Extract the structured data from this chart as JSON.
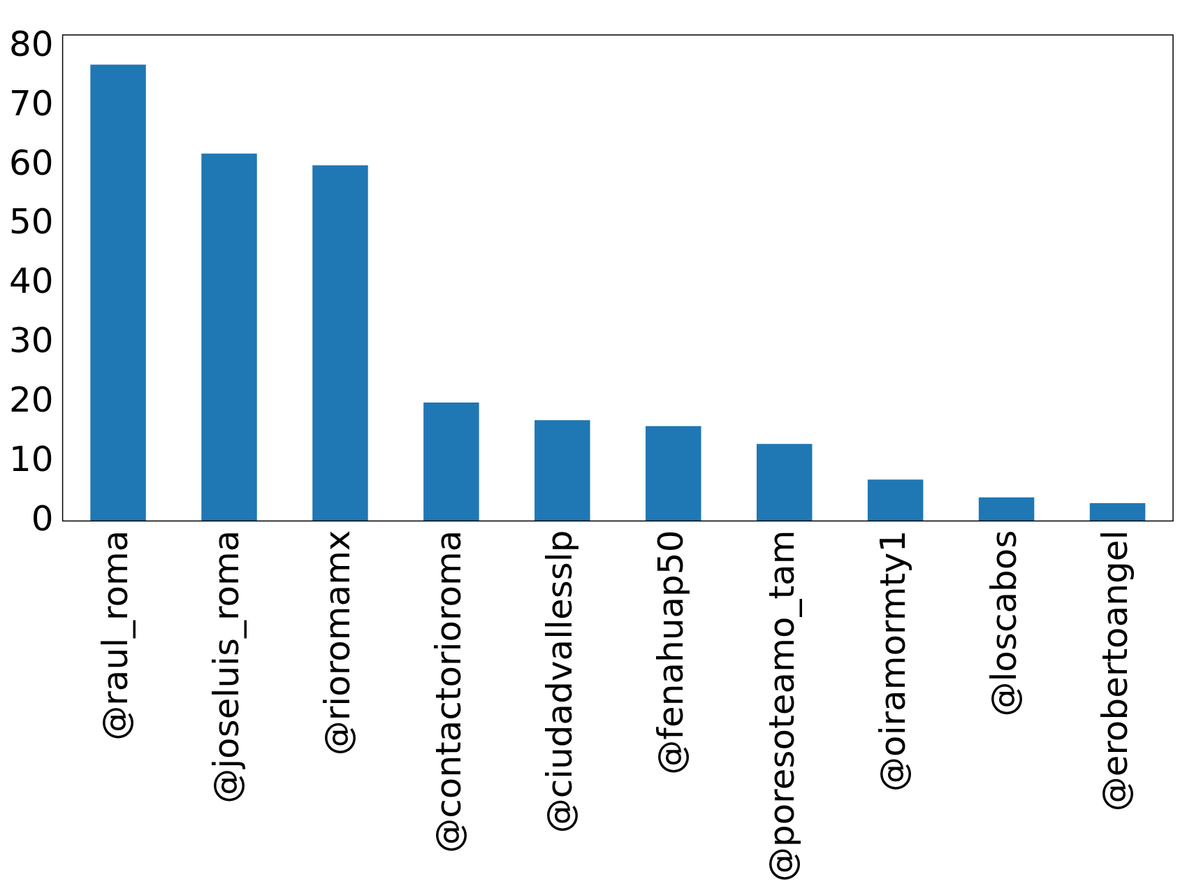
{
  "chart_data": {
    "type": "bar",
    "categories": [
      "@raul_roma",
      "@joseluis_roma",
      "@rioromamx",
      "@contactorioroma",
      "@ciudadvallesslp",
      "@fenahuap50",
      "@poresoteamo_tam",
      "@oiramormty1",
      "@loscabos",
      "@erobertoangel"
    ],
    "values": [
      77,
      62,
      60,
      20,
      17,
      16,
      13,
      7,
      4,
      3
    ],
    "color": "#1f77b4",
    "ylim": [
      0,
      82
    ],
    "yticks": [
      0,
      10,
      20,
      30,
      40,
      50,
      60,
      70,
      80
    ],
    "grid": false,
    "legend": false
  }
}
